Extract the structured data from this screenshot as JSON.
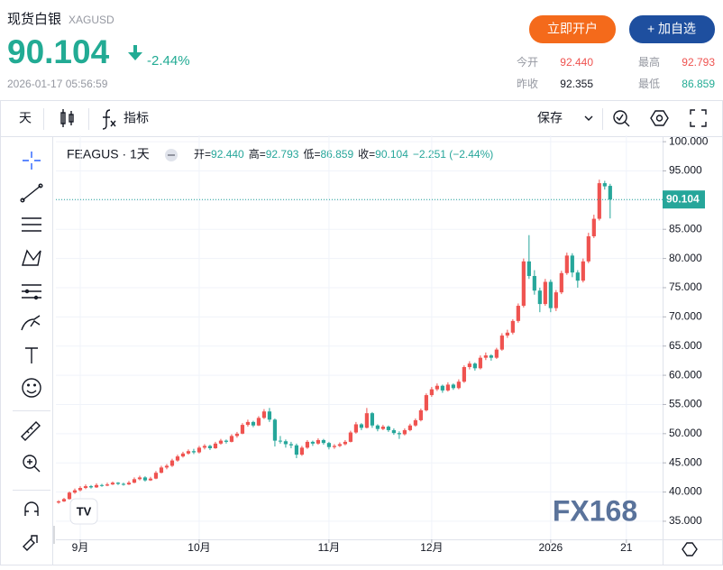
{
  "header": {
    "title": "现货白银",
    "symbol": "XAGUSD",
    "price": "90.104",
    "change": "-2.44%",
    "timestamp": "2026-01-17 05:56:59",
    "buttons": [
      "立即开户",
      "+ 加自选"
    ],
    "stats": [
      {
        "label": "今开",
        "value": "92.440"
      },
      {
        "label": "最高",
        "value": "92.793"
      },
      {
        "label": "昨收",
        "value": "92.355"
      },
      {
        "label": "最低",
        "value": "86.859"
      }
    ]
  },
  "toolbar": {
    "interval": "天",
    "indicators": "指标",
    "save": "保存"
  },
  "watermark": "FX168",
  "chart_data": {
    "type": "candlestick",
    "title": "FEAGUS · 1天",
    "legend_labels": [
      "开=",
      "高=",
      "低=",
      "收="
    ],
    "legend_values": [
      "92.440",
      "92.793",
      "86.859",
      "90.104",
      "−2.251 (−2.44%)"
    ],
    "price_label": "90.104",
    "up_color": "#ef5350",
    "down_color": "#26a69a",
    "grid": true,
    "candles": [
      [
        38.2,
        38.6,
        38.0,
        38.4
      ],
      [
        38.4,
        39.0,
        38.3,
        38.8
      ],
      [
        38.8,
        40.1,
        38.7,
        39.9
      ],
      [
        39.9,
        40.6,
        39.7,
        40.3
      ],
      [
        40.3,
        41.0,
        40.1,
        40.7
      ],
      [
        40.7,
        41.3,
        40.5,
        41.0
      ],
      [
        41.0,
        41.2,
        40.6,
        40.8
      ],
      [
        40.8,
        41.5,
        40.7,
        41.2
      ],
      [
        41.2,
        41.4,
        40.9,
        41.1
      ],
      [
        41.1,
        41.6,
        41.0,
        41.3
      ],
      [
        41.3,
        41.8,
        41.2,
        41.6
      ],
      [
        41.6,
        41.7,
        41.2,
        41.4
      ],
      [
        41.4,
        41.6,
        41.1,
        41.3
      ],
      [
        41.3,
        41.9,
        41.2,
        41.6
      ],
      [
        41.6,
        42.5,
        41.5,
        42.2
      ],
      [
        42.2,
        42.8,
        42.0,
        42.5
      ],
      [
        42.5,
        42.7,
        41.8,
        42.0
      ],
      [
        42.0,
        42.6,
        41.9,
        42.3
      ],
      [
        42.3,
        43.6,
        42.2,
        43.3
      ],
      [
        43.3,
        44.5,
        43.2,
        44.2
      ],
      [
        44.2,
        44.8,
        43.9,
        44.5
      ],
      [
        44.5,
        45.7,
        44.3,
        45.4
      ],
      [
        45.4,
        46.4,
        45.2,
        46.1
      ],
      [
        46.1,
        46.9,
        45.9,
        46.6
      ],
      [
        46.6,
        47.3,
        46.4,
        47.0
      ],
      [
        47.0,
        47.4,
        46.5,
        46.8
      ],
      [
        46.8,
        47.9,
        46.6,
        47.6
      ],
      [
        47.6,
        48.2,
        47.3,
        47.9
      ],
      [
        47.9,
        48.1,
        47.2,
        47.5
      ],
      [
        47.5,
        48.6,
        47.4,
        48.3
      ],
      [
        48.3,
        49.1,
        48.1,
        48.8
      ],
      [
        48.8,
        49.0,
        48.3,
        48.6
      ],
      [
        48.6,
        49.9,
        48.5,
        49.6
      ],
      [
        49.6,
        50.3,
        49.3,
        50.0
      ],
      [
        50.0,
        51.8,
        49.9,
        51.5
      ],
      [
        51.5,
        52.4,
        51.2,
        52.0
      ],
      [
        52.0,
        52.2,
        51.1,
        51.4
      ],
      [
        51.4,
        53.0,
        51.3,
        52.7
      ],
      [
        52.7,
        54.2,
        52.5,
        53.8
      ],
      [
        53.8,
        54.4,
        52.0,
        52.4
      ],
      [
        52.4,
        52.6,
        47.8,
        48.8
      ],
      [
        48.8,
        49.6,
        48.3,
        48.7
      ],
      [
        48.7,
        49.0,
        47.6,
        48.2
      ],
      [
        48.2,
        48.6,
        47.5,
        48.0
      ],
      [
        48.0,
        48.3,
        45.8,
        46.4
      ],
      [
        46.4,
        47.9,
        46.2,
        47.6
      ],
      [
        47.6,
        48.9,
        47.4,
        48.6
      ],
      [
        48.6,
        48.8,
        47.9,
        48.3
      ],
      [
        48.3,
        49.2,
        48.1,
        48.9
      ],
      [
        48.9,
        49.1,
        48.1,
        48.4
      ],
      [
        48.4,
        48.6,
        47.3,
        47.7
      ],
      [
        47.7,
        48.2,
        47.4,
        47.9
      ],
      [
        47.9,
        48.5,
        47.7,
        48.2
      ],
      [
        48.2,
        48.9,
        48.0,
        48.6
      ],
      [
        48.6,
        50.5,
        48.5,
        50.2
      ],
      [
        50.2,
        52.0,
        50.0,
        51.6
      ],
      [
        51.6,
        51.8,
        50.6,
        51.0
      ],
      [
        51.0,
        54.4,
        50.9,
        53.5
      ],
      [
        53.5,
        53.7,
        51.0,
        51.4
      ],
      [
        51.4,
        51.6,
        50.4,
        50.8
      ],
      [
        50.8,
        51.5,
        50.6,
        51.2
      ],
      [
        51.2,
        51.4,
        50.3,
        50.6
      ],
      [
        50.6,
        50.9,
        49.8,
        50.1
      ],
      [
        50.1,
        50.4,
        49.1,
        49.9
      ],
      [
        49.9,
        50.9,
        49.7,
        50.6
      ],
      [
        50.6,
        51.7,
        50.4,
        51.4
      ],
      [
        51.4,
        52.6,
        51.2,
        52.3
      ],
      [
        52.3,
        54.3,
        52.1,
        54.0
      ],
      [
        54.0,
        56.9,
        53.8,
        56.6
      ],
      [
        56.6,
        58.0,
        56.3,
        57.6
      ],
      [
        57.6,
        58.6,
        57.3,
        58.2
      ],
      [
        58.2,
        58.4,
        57.0,
        57.4
      ],
      [
        57.4,
        58.8,
        57.2,
        58.4
      ],
      [
        58.4,
        58.6,
        57.5,
        57.8
      ],
      [
        57.8,
        59.3,
        57.6,
        58.9
      ],
      [
        58.9,
        61.7,
        58.7,
        61.4
      ],
      [
        61.4,
        62.4,
        61.0,
        62.0
      ],
      [
        62.0,
        62.2,
        60.8,
        61.2
      ],
      [
        61.2,
        63.4,
        61.0,
        63.0
      ],
      [
        63.0,
        63.9,
        62.6,
        63.4
      ],
      [
        63.4,
        63.6,
        62.5,
        63.0
      ],
      [
        63.0,
        64.7,
        62.8,
        64.4
      ],
      [
        64.4,
        67.2,
        64.2,
        66.8
      ],
      [
        66.8,
        67.8,
        66.4,
        67.3
      ],
      [
        67.3,
        69.6,
        67.0,
        69.3
      ],
      [
        69.3,
        72.3,
        69.0,
        71.9
      ],
      [
        71.9,
        80.0,
        71.6,
        79.5
      ],
      [
        79.5,
        84.0,
        76.5,
        77.0
      ],
      [
        77.0,
        78.0,
        73.8,
        74.5
      ],
      [
        74.5,
        75.0,
        70.8,
        72.2
      ],
      [
        72.2,
        76.5,
        71.9,
        76.0
      ],
      [
        76.0,
        76.4,
        70.8,
        71.5
      ],
      [
        71.5,
        74.6,
        71.0,
        74.2
      ],
      [
        74.2,
        77.9,
        73.9,
        77.5
      ],
      [
        77.5,
        81.0,
        77.2,
        80.5
      ],
      [
        80.5,
        80.9,
        76.8,
        77.6
      ],
      [
        77.6,
        78.0,
        75.0,
        76.2
      ],
      [
        76.2,
        80.0,
        75.9,
        79.5
      ],
      [
        79.5,
        84.4,
        79.2,
        83.8
      ],
      [
        83.8,
        87.5,
        83.5,
        86.8
      ],
      [
        86.8,
        93.5,
        86.5,
        92.9
      ],
      [
        92.9,
        93.3,
        91.8,
        92.355
      ],
      [
        92.44,
        92.793,
        86.859,
        90.104
      ]
    ],
    "xlim": [
      -0.5,
      111.7
    ],
    "xticks": [
      {
        "value": 4,
        "label": "9月"
      },
      {
        "value": 26,
        "label": "10月"
      },
      {
        "value": 50,
        "label": "11月"
      },
      {
        "value": 69,
        "label": "12月"
      },
      {
        "value": 91,
        "label": "2026"
      },
      {
        "value": 105,
        "label": "21"
      }
    ],
    "ylim": [
      31.9,
      101.1
    ],
    "yticks": [
      {
        "value": 35,
        "label": "35.000"
      },
      {
        "value": 40,
        "label": "40.000"
      },
      {
        "value": 45,
        "label": "45.000"
      },
      {
        "value": 50,
        "label": "50.000"
      },
      {
        "value": 55,
        "label": "55.000"
      },
      {
        "value": 60,
        "label": "60.000"
      },
      {
        "value": 65,
        "label": "65.000"
      },
      {
        "value": 70,
        "label": "70.000"
      },
      {
        "value": 75,
        "label": "75.000"
      },
      {
        "value": 80,
        "label": "80.000"
      },
      {
        "value": 85,
        "label": "85.000"
      },
      {
        "value": 90,
        "label": "90.000"
      },
      {
        "value": 95,
        "label": "95.000"
      },
      {
        "value": 100,
        "label": "100.000"
      }
    ]
  }
}
